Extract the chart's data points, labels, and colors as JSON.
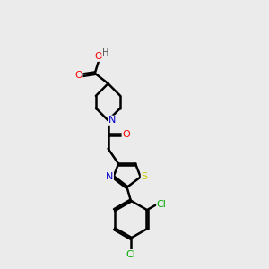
{
  "bg_color": "#ebebeb",
  "bond_color": "#000000",
  "bond_width": 1.8,
  "atom_colors": {
    "C": "#000000",
    "N": "#0000cc",
    "O": "#ff0000",
    "S": "#cccc00",
    "Cl": "#00aa00",
    "H": "#555555"
  },
  "font_size": 8,
  "fig_size": [
    3.0,
    3.0
  ],
  "dpi": 100
}
